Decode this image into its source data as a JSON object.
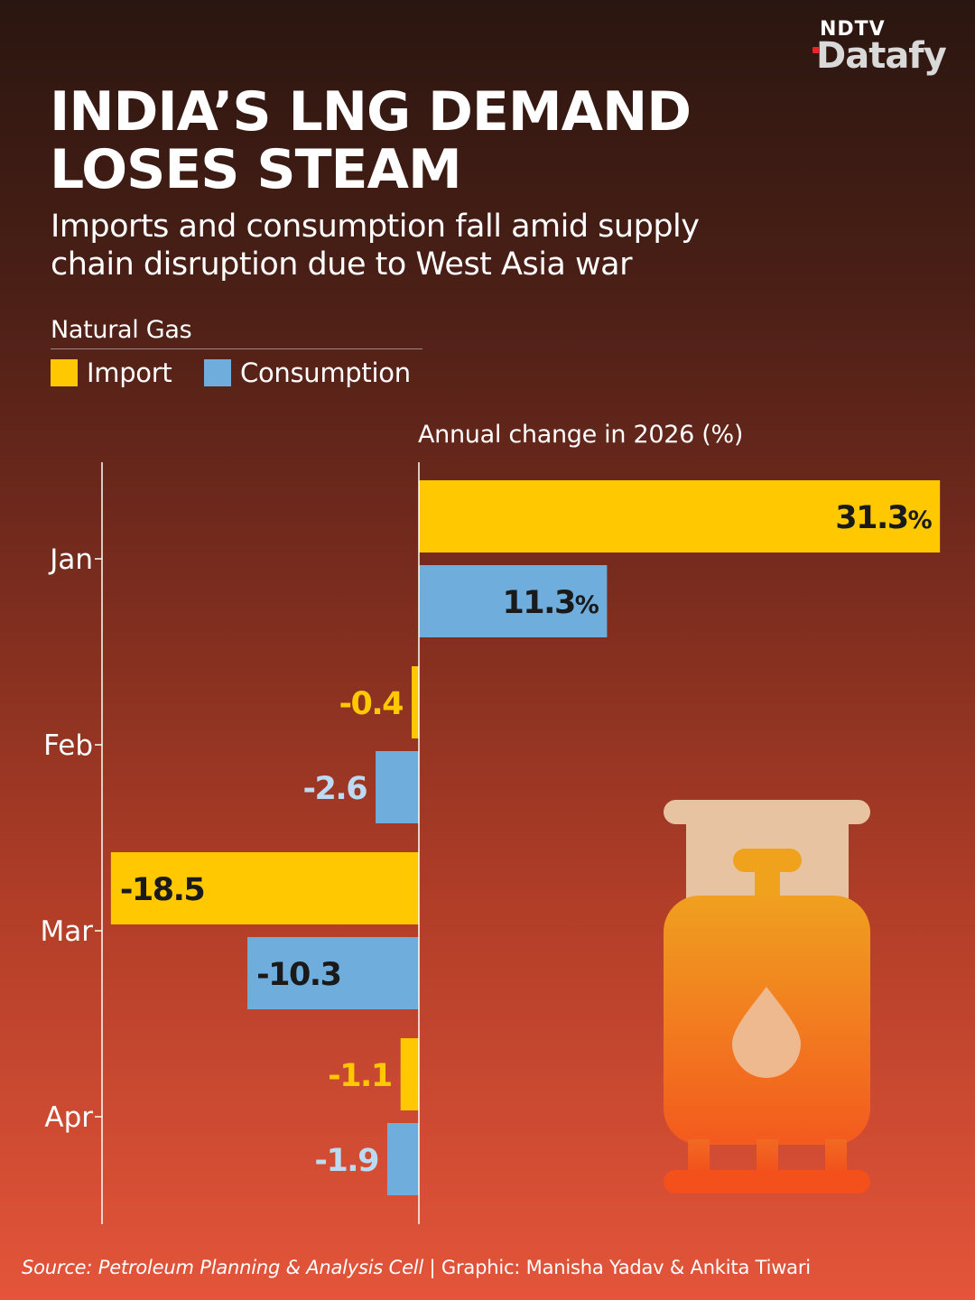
{
  "brand": {
    "top": "NDTV",
    "main": "Datafy"
  },
  "header": {
    "title_line1": "INDIA’S LNG DEMAND",
    "title_line2": "LOSES STEAM",
    "subtitle_line1": "Imports and consumption fall amid supply",
    "subtitle_line2": "chain disruption due to West Asia war"
  },
  "legend": {
    "title": "Natural Gas",
    "items": [
      {
        "label": "Import",
        "color": "#ffc800"
      },
      {
        "label": "Consumption",
        "color": "#6eaddc"
      }
    ]
  },
  "colors": {
    "import": "#ffc800",
    "consumption": "#6eaddc",
    "import_label_outside": "#ffc800",
    "consumption_label_outside": "#bcdaf2",
    "label_inside": "#1a1a1a"
  },
  "chart_data": {
    "type": "bar",
    "orientation": "horizontal",
    "title": "INDIA’S LNG DEMAND LOSES STEAM",
    "xlabel": "Annual change in 2026 (%)",
    "categories": [
      "Jan",
      "Feb",
      "Mar",
      "Apr"
    ],
    "series": [
      {
        "name": "Import",
        "values": [
          31.3,
          -0.4,
          -18.5,
          -1.1
        ],
        "labels": [
          "31.3%",
          "-0.4",
          "-18.5",
          "-1.1"
        ]
      },
      {
        "name": "Consumption",
        "values": [
          11.3,
          -2.6,
          -10.3,
          -1.9
        ],
        "labels": [
          "11.3%",
          "-2.6",
          "-10.3",
          "-1.9"
        ]
      }
    ],
    "xlim": [
      -18.5,
      31.3
    ],
    "grid": false,
    "legend": "top-left"
  },
  "icon": {
    "name": "gas-cylinder-icon"
  },
  "footer": {
    "source": "Source: Petroleum Planning & Analysis Cell",
    "separator": " | ",
    "credit": "Graphic: Manisha Yadav & Ankita Tiwari"
  }
}
